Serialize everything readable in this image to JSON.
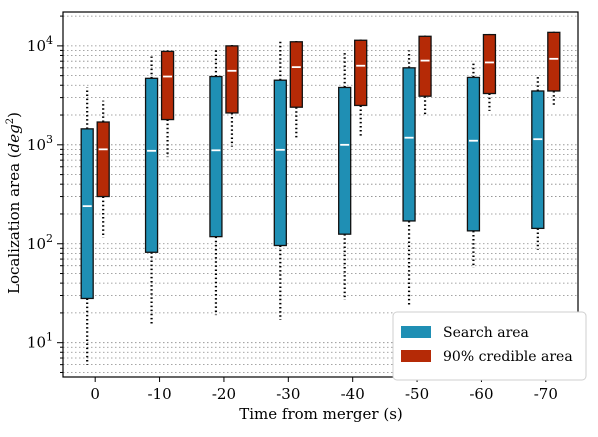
{
  "chart_data": {
    "type": "box",
    "xlabel": "Time from merger (s)",
    "ylabel_base": "Localization area (",
    "ylabel_unit_base": "deg",
    "ylabel_unit_exp": "2",
    "ylabel_close": ")",
    "yscale": "log",
    "ylim": [
      4.5,
      22000
    ],
    "yticks": [
      {
        "value": 10,
        "base": "10",
        "exp": "1"
      },
      {
        "value": 100,
        "base": "10",
        "exp": "2"
      },
      {
        "value": 1000,
        "base": "10",
        "exp": "3"
      },
      {
        "value": 10000,
        "base": "10",
        "exp": "4"
      }
    ],
    "grid": "horizontal-minor-dotted",
    "legend_position": "bottom-right",
    "categories": [
      "0",
      "-10",
      "-20",
      "-30",
      "-40",
      "-50",
      "-60",
      "-70"
    ],
    "series": [
      {
        "name": "Search area",
        "color": "#1f8fb4",
        "boxes": [
          {
            "whislo": 6,
            "q1": 28,
            "med": 240,
            "q3": 1450,
            "whishi": 3800
          },
          {
            "whislo": 15,
            "q1": 82,
            "med": 870,
            "q3": 4700,
            "whishi": 7800
          },
          {
            "whislo": 19,
            "q1": 118,
            "med": 880,
            "q3": 4900,
            "whishi": 9000
          },
          {
            "whislo": 17,
            "q1": 96,
            "med": 890,
            "q3": 4500,
            "whishi": 11000
          },
          {
            "whislo": 27,
            "q1": 125,
            "med": 1000,
            "q3": 3800,
            "whishi": 9000
          },
          {
            "whislo": 23,
            "q1": 170,
            "med": 1180,
            "q3": 6000,
            "whishi": 9000
          },
          {
            "whislo": 57,
            "q1": 135,
            "med": 1100,
            "q3": 4800,
            "whishi": 7000
          },
          {
            "whislo": 87,
            "q1": 143,
            "med": 1140,
            "q3": 3500,
            "whishi": 5000
          }
        ]
      },
      {
        "name": "90% credible area",
        "color": "#b52a06",
        "boxes": [
          {
            "whislo": 115,
            "q1": 300,
            "med": 900,
            "q3": 1700,
            "whishi": 2800
          },
          {
            "whislo": 750,
            "q1": 1800,
            "med": 4900,
            "q3": 8800,
            "whishi": 9000
          },
          {
            "whislo": 960,
            "q1": 2100,
            "med": 5600,
            "q3": 10000,
            "whishi": 10200
          },
          {
            "whislo": 1150,
            "q1": 2400,
            "med": 6100,
            "q3": 11000,
            "whishi": 11200
          },
          {
            "whislo": 1170,
            "q1": 2500,
            "med": 6300,
            "q3": 11400,
            "whishi": 11600
          },
          {
            "whislo": 2000,
            "q1": 3100,
            "med": 7100,
            "q3": 12500,
            "whishi": 12700
          },
          {
            "whislo": 2200,
            "q1": 3300,
            "med": 6800,
            "q3": 13000,
            "whishi": 13200
          },
          {
            "whislo": 2400,
            "q1": 3500,
            "med": 7400,
            "q3": 13700,
            "whishi": 13900
          }
        ]
      }
    ]
  }
}
